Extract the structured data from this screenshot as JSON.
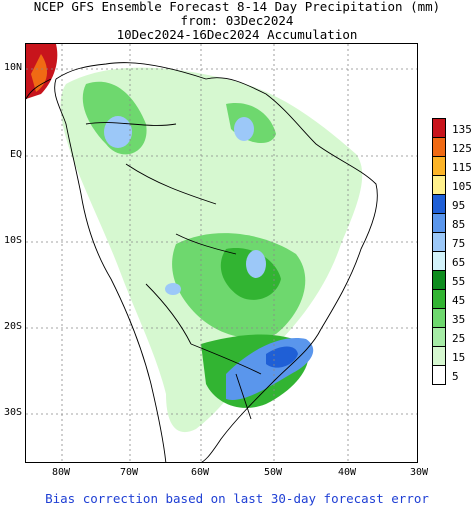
{
  "header": {
    "line1": "NCEP GFS Ensemble Forecast 8-14 Day Precipitation (mm)",
    "line2": "from: 03Dec2024",
    "line3": "10Dec2024-16Dec2024 Accumulation"
  },
  "axes": {
    "lat_labels": [
      "10N",
      "EQ",
      "10S",
      "20S",
      "30S"
    ],
    "lon_labels": [
      "80W",
      "70W",
      "60W",
      "50W",
      "40W",
      "30W"
    ]
  },
  "legend": {
    "levels": [
      "135",
      "125",
      "115",
      "105",
      "95",
      "85",
      "75",
      "65",
      "55",
      "45",
      "35",
      "25",
      "15",
      "5"
    ],
    "colors": [
      "#c8141c",
      "#f06a14",
      "#fcb428",
      "#fff08c",
      "#1f5fd6",
      "#5a96ec",
      "#9cc8f8",
      "#d2f2fa",
      "#0e8c1e",
      "#32b432",
      "#6ed86e",
      "#a6eca6",
      "#d6f8d0",
      "#ffffff"
    ]
  },
  "footer": {
    "note": "Bias correction based on last 30-day forecast error"
  },
  "colors": {
    "footer_text": "#1f3fd4",
    "grid": "#888888",
    "coast": "#000000"
  }
}
